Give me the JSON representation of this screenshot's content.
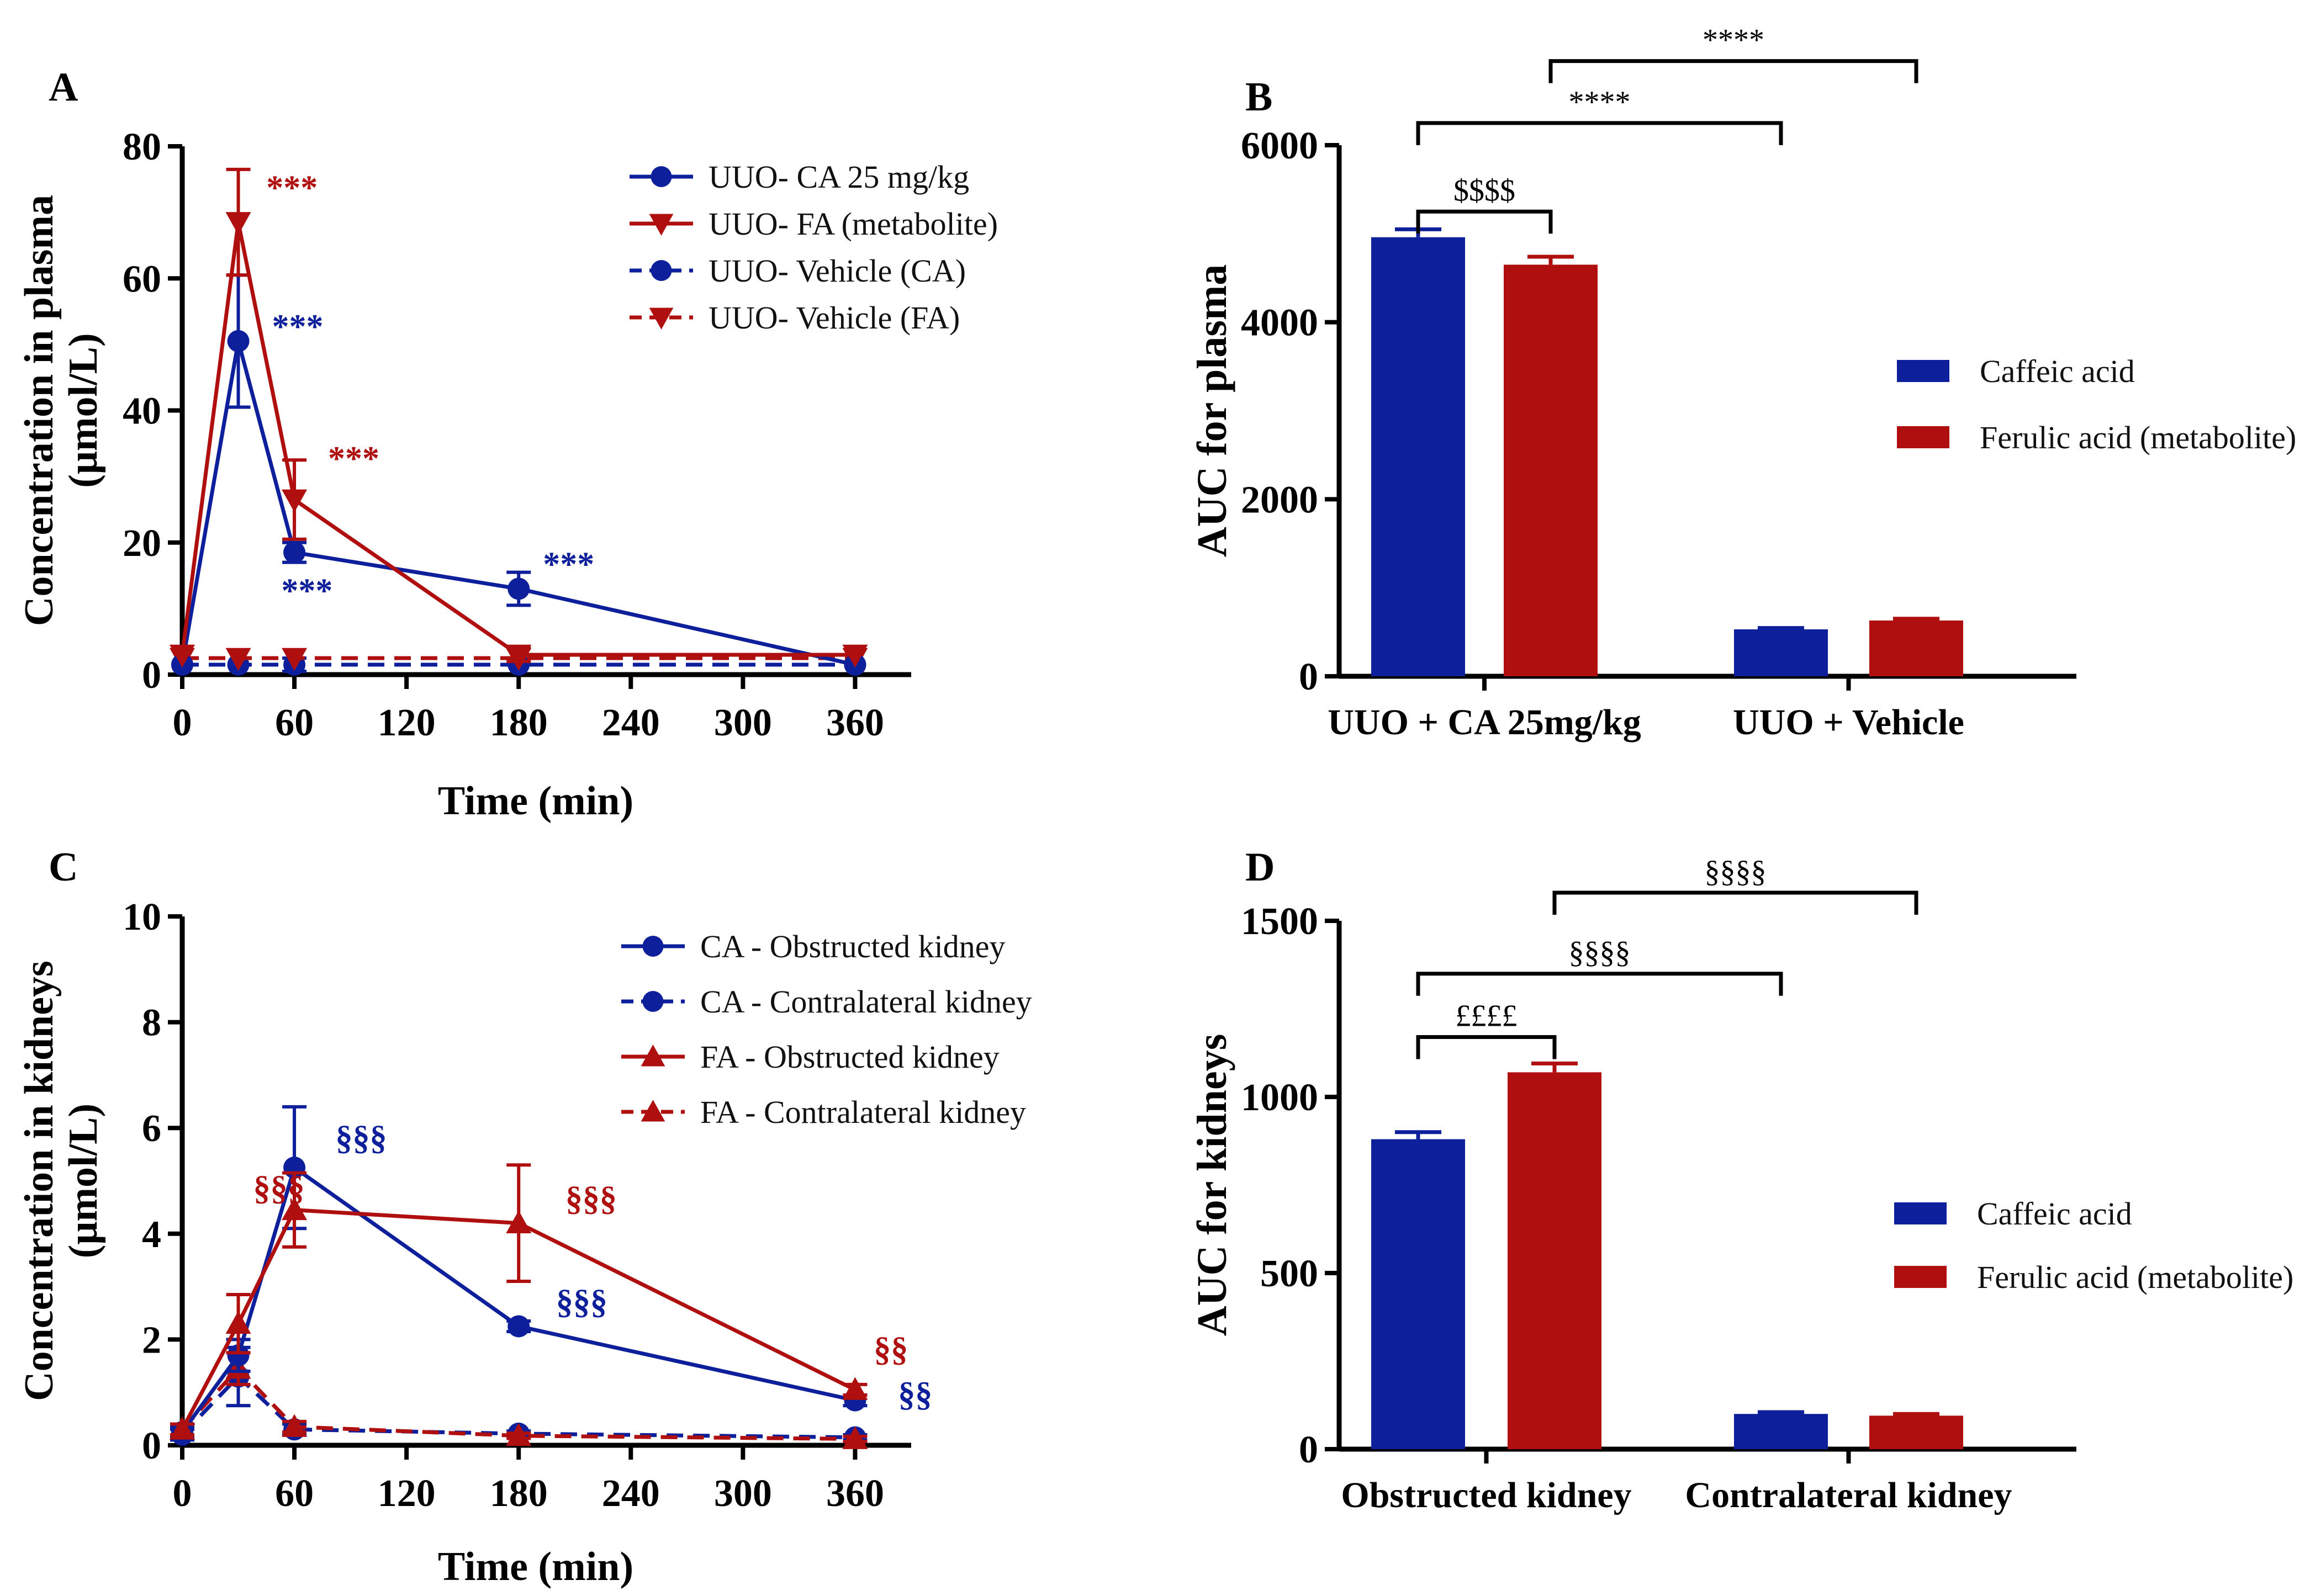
{
  "colors": {
    "blue": "#0d1f9a",
    "red": "#b00f0f",
    "axis": "#000000"
  },
  "chart_data": [
    {
      "panel": "A",
      "type": "line",
      "xlabel": "Time (min)",
      "ylabel": "Concentration in plasma",
      "ylabel2": "(μmol/L)",
      "xlim": [
        0,
        390
      ],
      "ylim": [
        0,
        80
      ],
      "xticks": [
        0,
        60,
        120,
        180,
        240,
        300,
        360
      ],
      "xtick_labels": [
        "0",
        "60",
        "120",
        "180",
        "240",
        "300",
        "360"
      ],
      "yticks": [
        0,
        20,
        40,
        60,
        80
      ],
      "ytick_labels": [
        "0",
        "20",
        "40",
        "60",
        "80"
      ],
      "legend_position": "top-right",
      "series": [
        {
          "name": "UUO- CA 25 mg/kg",
          "color": "blue",
          "dash": false,
          "marker": "circle",
          "x": [
            0,
            30,
            60,
            180,
            360
          ],
          "y": [
            1.5,
            50.5,
            18.5,
            13,
            1.5
          ],
          "err": [
            0,
            10,
            1.5,
            2.5,
            0
          ]
        },
        {
          "name": "UUO- FA (metabolite)",
          "color": "red",
          "dash": false,
          "marker": "tri-down",
          "x": [
            0,
            30,
            60,
            180,
            360
          ],
          "y": [
            3,
            68.5,
            26.5,
            3,
            3
          ],
          "err": [
            0,
            8,
            6,
            1,
            0
          ]
        },
        {
          "name": "UUO- Vehicle (CA)",
          "color": "blue",
          "dash": true,
          "marker": "circle",
          "x": [
            0,
            30,
            60,
            180,
            360
          ],
          "y": [
            1.5,
            1.5,
            1.5,
            1.5,
            1.5
          ],
          "err": [
            0,
            0,
            1,
            0,
            0
          ]
        },
        {
          "name": "UUO- Vehicle (FA)",
          "color": "red",
          "dash": true,
          "marker": "tri-down",
          "x": [
            0,
            30,
            60,
            180,
            360
          ],
          "y": [
            2.5,
            2.5,
            2.5,
            2.5,
            2.5
          ],
          "err": [
            0,
            0,
            0,
            0,
            0
          ]
        }
      ],
      "annotations": [
        {
          "text": "***",
          "color": "red",
          "x": 45,
          "y": 72
        },
        {
          "text": "***",
          "color": "blue",
          "x": 48,
          "y": 51
        },
        {
          "text": "***",
          "color": "red",
          "x": 78,
          "y": 31
        },
        {
          "text": "***",
          "color": "blue",
          "x": 53,
          "y": 11
        },
        {
          "text": "***",
          "color": "blue",
          "x": 193,
          "y": 15
        }
      ]
    },
    {
      "panel": "B",
      "type": "bar",
      "xlabel": "",
      "ylabel": "AUC for plasma",
      "ylim": [
        0,
        6000
      ],
      "yticks": [
        0,
        2000,
        4000,
        6000
      ],
      "ytick_labels": [
        "0",
        "2000",
        "4000",
        "6000"
      ],
      "categories": [
        "UUO + CA 25mg/kg",
        "UUO + Vehicle"
      ],
      "legend_position": "right",
      "series": [
        {
          "name": "Caffeic acid",
          "color": "blue",
          "values": [
            4960,
            530
          ],
          "err": [
            90,
            15
          ]
        },
        {
          "name": "Ferulic acid (metabolite)",
          "color": "red",
          "values": [
            4650,
            630
          ],
          "err": [
            90,
            20
          ]
        }
      ],
      "brackets": [
        {
          "label": "$$$$",
          "from": [
            0,
            0
          ],
          "to": [
            0,
            1
          ],
          "level": 5250
        },
        {
          "label": "****",
          "from": [
            0,
            0
          ],
          "to": [
            1,
            0
          ],
          "level": 6250
        },
        {
          "label": "****",
          "from": [
            0,
            1
          ],
          "to": [
            1,
            1
          ],
          "level": 6950
        }
      ]
    },
    {
      "panel": "C",
      "type": "line",
      "xlabel": "Time (min)",
      "ylabel": "Concentration in kidneys",
      "ylabel2": "(μmol/L)",
      "xlim": [
        0,
        390
      ],
      "ylim": [
        0,
        10
      ],
      "xticks": [
        0,
        60,
        120,
        180,
        240,
        300,
        360
      ],
      "xtick_labels": [
        "0",
        "60",
        "120",
        "180",
        "240",
        "300",
        "360"
      ],
      "yticks": [
        0,
        2,
        4,
        6,
        8,
        10
      ],
      "ytick_labels": [
        "0",
        "2",
        "4",
        "6",
        "8",
        "10"
      ],
      "legend_position": "top-right",
      "series": [
        {
          "name": "CA - Obstructed kidney",
          "color": "blue",
          "dash": false,
          "marker": "circle",
          "x": [
            0,
            30,
            60,
            180,
            360
          ],
          "y": [
            0.25,
            1.7,
            5.25,
            2.25,
            0.85
          ],
          "err": [
            0.1,
            0.3,
            1.15,
            0.1,
            0.1
          ]
        },
        {
          "name": "CA - Contralateral kidney",
          "color": "blue",
          "dash": true,
          "marker": "circle",
          "x": [
            0,
            30,
            60,
            180,
            360
          ],
          "y": [
            0.2,
            1.3,
            0.3,
            0.22,
            0.15
          ],
          "err": [
            0.1,
            0.55,
            0.1,
            0.05,
            0.05
          ]
        },
        {
          "name": "FA - Obstructed kidney",
          "color": "red",
          "dash": false,
          "marker": "tri-up",
          "x": [
            0,
            30,
            60,
            180,
            360
          ],
          "y": [
            0.3,
            2.3,
            4.45,
            4.2,
            1.05
          ],
          "err": [
            0.1,
            0.55,
            0.7,
            1.1,
            0.1
          ]
        },
        {
          "name": "FA - Contralateral kidney",
          "color": "red",
          "dash": true,
          "marker": "tri-up",
          "x": [
            0,
            30,
            60,
            180,
            360
          ],
          "y": [
            0.3,
            1.45,
            0.35,
            0.18,
            0.12
          ],
          "err": [
            0.1,
            0.3,
            0.1,
            0.05,
            0.05
          ]
        }
      ],
      "annotations": [
        {
          "text": "§§§",
          "color": "red",
          "x": 38,
          "y": 4.65
        },
        {
          "text": "§§§",
          "color": "blue",
          "x": 82,
          "y": 5.6
        },
        {
          "text": "§§§",
          "color": "red",
          "x": 205,
          "y": 4.45
        },
        {
          "text": "§§§",
          "color": "blue",
          "x": 200,
          "y": 2.5
        },
        {
          "text": "§§",
          "color": "red",
          "x": 370,
          "y": 1.6
        },
        {
          "text": "§§",
          "color": "blue",
          "x": 383,
          "y": 0.75
        }
      ]
    },
    {
      "panel": "D",
      "type": "bar",
      "xlabel": "",
      "ylabel": "AUC for kidneys",
      "ylim": [
        0,
        1500
      ],
      "yticks": [
        0,
        500,
        1000,
        1500
      ],
      "ytick_labels": [
        "0",
        "500",
        "1000",
        "1500"
      ],
      "categories": [
        "Obstructed kidney",
        "Contralateral kidney"
      ],
      "legend_position": "right",
      "series": [
        {
          "name": "Caffeic acid",
          "color": "blue",
          "values": [
            880,
            100
          ],
          "err": [
            20,
            5
          ]
        },
        {
          "name": "Ferulic acid (metabolite)",
          "color": "red",
          "values": [
            1070,
            95
          ],
          "err": [
            25,
            5
          ]
        }
      ],
      "brackets": [
        {
          "label": "££££",
          "from": [
            0,
            0
          ],
          "to": [
            0,
            1
          ],
          "level": 1170
        },
        {
          "label": "§§§§",
          "from": [
            0,
            0
          ],
          "to": [
            1,
            0
          ],
          "level": 1350
        },
        {
          "label": "§§§§",
          "from": [
            0,
            1
          ],
          "to": [
            1,
            1
          ],
          "level": 1580
        }
      ]
    }
  ]
}
